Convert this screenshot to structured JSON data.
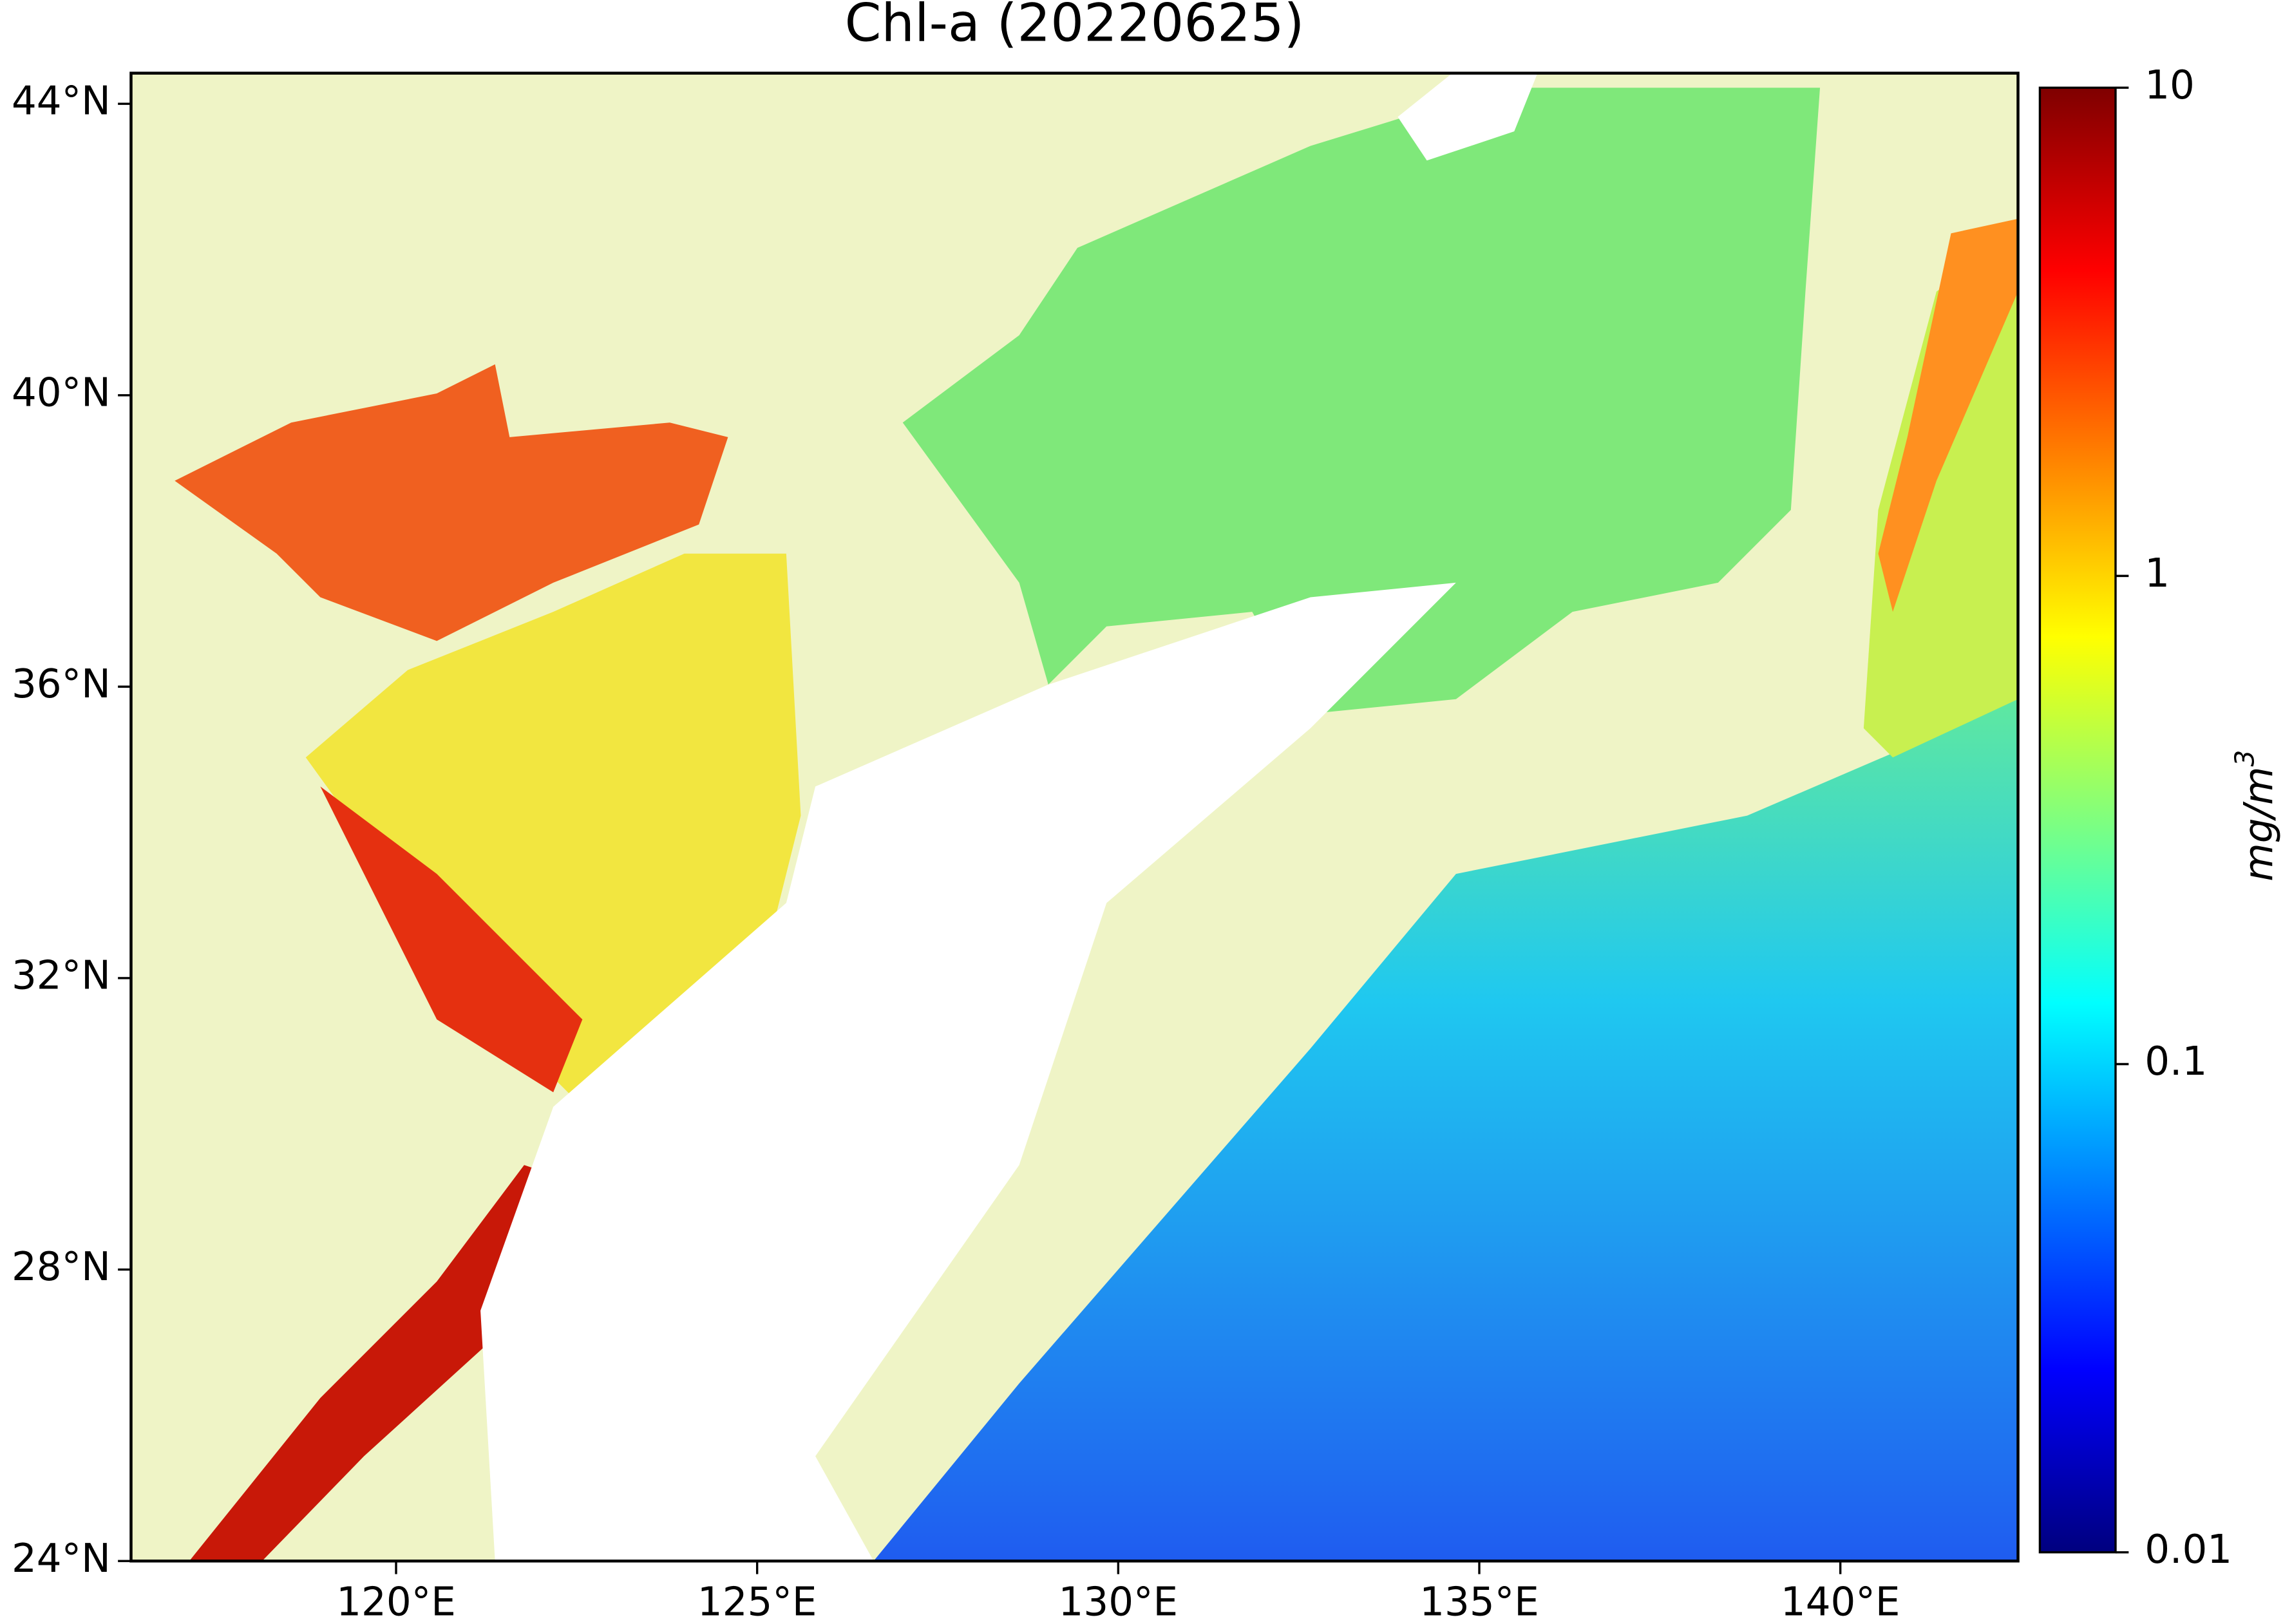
{
  "chart_data": {
    "type": "map",
    "title": "Chl-a (20220625)",
    "xlim": [
      116.33,
      142.46
    ],
    "ylim": [
      24,
      44.42
    ],
    "xticks": [
      {
        "value": 120,
        "label": "120°E"
      },
      {
        "value": 125,
        "label": "125°E"
      },
      {
        "value": 130,
        "label": "130°E"
      },
      {
        "value": 135,
        "label": "135°E"
      },
      {
        "value": 140,
        "label": "140°E"
      }
    ],
    "yticks": [
      {
        "value": 24,
        "label": "24°N"
      },
      {
        "value": 28,
        "label": "28°N"
      },
      {
        "value": 32,
        "label": "32°N"
      },
      {
        "value": 36,
        "label": "36°N"
      },
      {
        "value": 40,
        "label": "40°N"
      },
      {
        "value": 44,
        "label": "44°N"
      }
    ],
    "colorbar": {
      "label": "mg/m",
      "label_superscript": "3",
      "scale": "log",
      "lim": [
        0.01,
        10
      ],
      "ticks": [
        0.01,
        0.1,
        1,
        10
      ],
      "colors": [
        "#00007f",
        "#0000ff",
        "#007fff",
        "#00ffff",
        "#7fff7f",
        "#ffff00",
        "#ff7f00",
        "#ff0000",
        "#7f0000"
      ]
    }
  }
}
